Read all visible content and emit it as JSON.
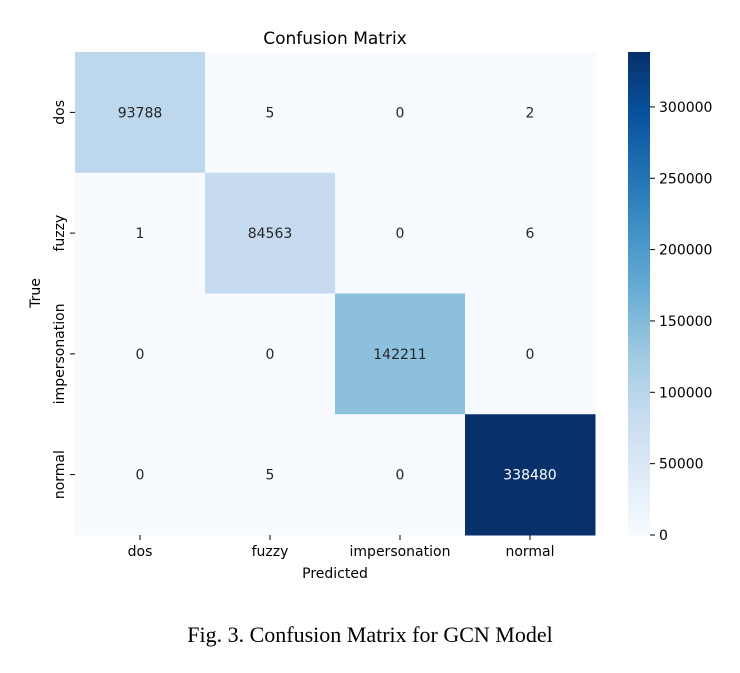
{
  "chart_data": {
    "type": "heatmap",
    "title": "Confusion Matrix",
    "xlabel": "Predicted",
    "ylabel": "True",
    "x_categories": [
      "dos",
      "fuzzy",
      "impersonation",
      "normal"
    ],
    "y_categories": [
      "dos",
      "fuzzy",
      "impersonation",
      "normal"
    ],
    "values": [
      [
        93788,
        5,
        0,
        2
      ],
      [
        1,
        84563,
        0,
        6
      ],
      [
        0,
        0,
        142211,
        0
      ],
      [
        0,
        5,
        0,
        338480
      ]
    ],
    "colorbar": {
      "range": [
        0,
        338480
      ],
      "ticks": [
        0,
        50000,
        100000,
        150000,
        200000,
        250000,
        300000
      ],
      "colormap": "Blues"
    }
  },
  "caption": "Fig. 3.  Confusion Matrix for GCN Model"
}
